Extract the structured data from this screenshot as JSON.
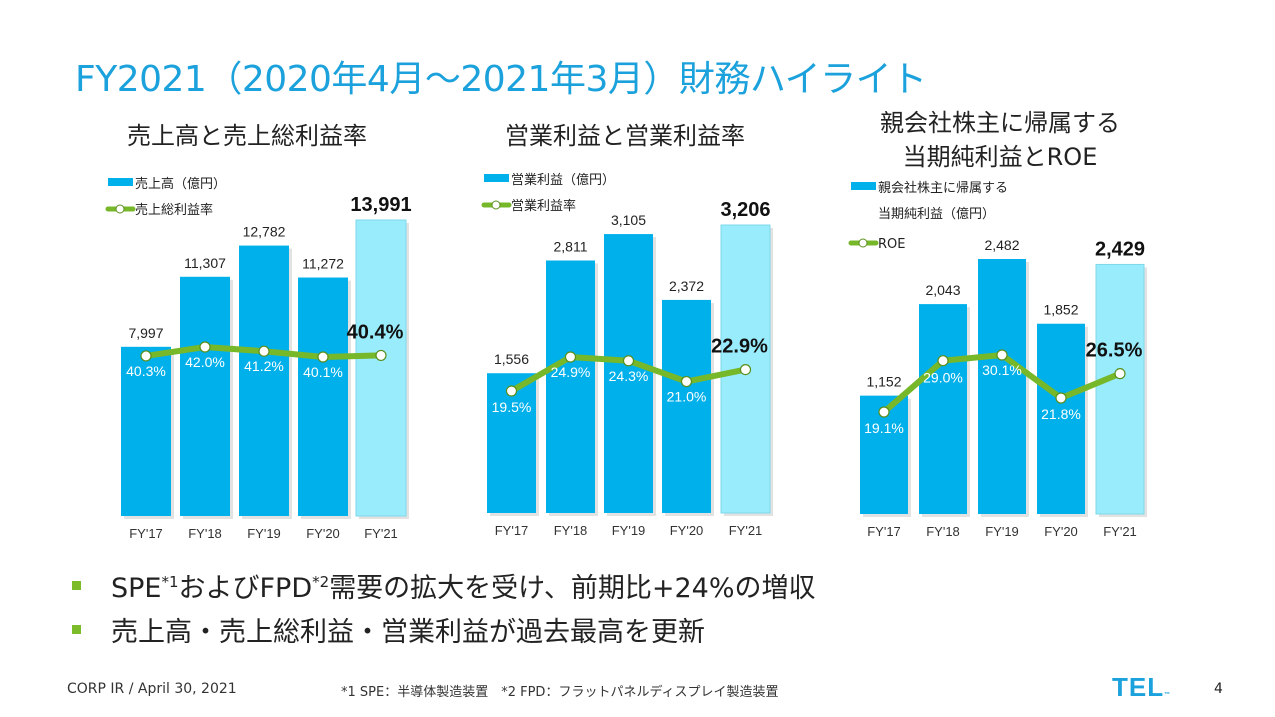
{
  "slide": {
    "title": "FY2021（2020年4月～2021年3月）財務ハイライト",
    "bullets": [
      {
        "parts": [
          "SPE",
          "*1",
          "およびFPD",
          "*2",
          "需要の拡大を受け、前期比+24%の増収"
        ]
      },
      {
        "parts": [
          "売上高・売上総利益・営業利益が過去最高を更新"
        ]
      }
    ],
    "footer": {
      "left": "CORP IR / April 30, 2021",
      "footnote": "*1 SPE：半導体製造装置　*2 FPD：フラットパネルディスプレイ製造装置",
      "logo": "TEL",
      "page": "4"
    },
    "colors": {
      "title": "#1ba1db",
      "bar": "#00b0ea",
      "bar_highlight": "#99ecfc",
      "line": "#76b82a",
      "bullet": "#7cbb2a"
    }
  },
  "chart_data": [
    {
      "type": "bar",
      "title": "売上高と売上総利益率",
      "categories": [
        "FY'17",
        "FY'18",
        "FY'19",
        "FY'20",
        "FY'21"
      ],
      "series": [
        {
          "name": "売上高（億円）",
          "kind": "bar",
          "values": [
            7997,
            11307,
            12782,
            11272,
            13991
          ],
          "labels": [
            "7,997",
            "11,307",
            "12,782",
            "11,272",
            "13,991"
          ]
        },
        {
          "name": "売上総利益率",
          "kind": "line",
          "values": [
            40.3,
            42.0,
            41.2,
            40.1,
            40.4
          ],
          "labels": [
            "40.3%",
            "42.0%",
            "41.2%",
            "40.1%",
            "40.4%"
          ]
        }
      ],
      "legend": [
        "売上高（億円）",
        "売上総利益率"
      ],
      "legend_position": "top-left",
      "highlight_index": 4
    },
    {
      "type": "bar",
      "title": "営業利益と営業利益率",
      "categories": [
        "FY'17",
        "FY'18",
        "FY'19",
        "FY'20",
        "FY'21"
      ],
      "series": [
        {
          "name": "営業利益（億円）",
          "kind": "bar",
          "values": [
            1556,
            2811,
            3105,
            2372,
            3206
          ],
          "labels": [
            "1,556",
            "2,811",
            "3,105",
            "2,372",
            "3,206"
          ]
        },
        {
          "name": "営業利益率",
          "kind": "line",
          "values": [
            19.5,
            24.9,
            24.3,
            21.0,
            22.9
          ],
          "labels": [
            "19.5%",
            "24.9%",
            "24.3%",
            "21.0%",
            "22.9%"
          ]
        }
      ],
      "legend": [
        "営業利益（億円）",
        "営業利益率"
      ],
      "legend_position": "top-left",
      "highlight_index": 4
    },
    {
      "type": "bar",
      "title": [
        "親会社株主に帰属する",
        "当期純利益とROE"
      ],
      "categories": [
        "FY'17",
        "FY'18",
        "FY'19",
        "FY'20",
        "FY'21"
      ],
      "series": [
        {
          "name": "親会社株主に帰属する当期純利益（億円）",
          "kind": "bar",
          "values": [
            1152,
            2043,
            2482,
            1852,
            2429
          ],
          "labels": [
            "1,152",
            "2,043",
            "2,482",
            "1,852",
            "2,429"
          ]
        },
        {
          "name": "ROE",
          "kind": "line",
          "values": [
            19.1,
            29.0,
            30.1,
            21.8,
            26.5
          ],
          "labels": [
            "19.1%",
            "29.0%",
            "30.1%",
            "21.8%",
            "26.5%"
          ]
        }
      ],
      "legend": [
        "親会社株主に帰属する",
        "当期純利益（億円）",
        "ROE"
      ],
      "legend_position": "top-left",
      "highlight_index": 4
    }
  ]
}
